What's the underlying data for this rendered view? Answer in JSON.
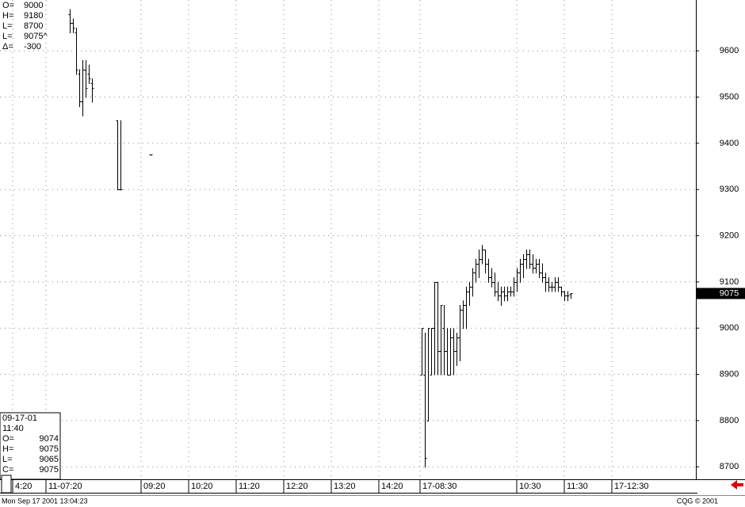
{
  "chart_data": {
    "type": "ohlc",
    "color": "#000000",
    "grid": true,
    "x": [
      88,
      92,
      96,
      100,
      104,
      108,
      112,
      116,
      148,
      152,
      190,
      532,
      536,
      540,
      544,
      548,
      552,
      556,
      560,
      564,
      568,
      572,
      576,
      580,
      584,
      588,
      592,
      596,
      600,
      604,
      608,
      612,
      616,
      620,
      624,
      628,
      632,
      636,
      640,
      644,
      648,
      652,
      656,
      660,
      664,
      668,
      672,
      676,
      680,
      684,
      688,
      692,
      696,
      700,
      704,
      708,
      712,
      716,
      720
    ],
    "open": [
      9680,
      9660,
      9640,
      9550,
      9490,
      9560,
      9550,
      9530,
      9450,
      9300,
      9375,
      8900,
      8900,
      8800,
      8900,
      9000,
      9100,
      8950,
      9000,
      8950,
      8900,
      8980,
      8950,
      8980,
      9040,
      9050,
      9080,
      9090,
      9120,
      9140,
      9150,
      9170,
      9140,
      9110,
      9100,
      9080,
      9070,
      9080,
      9070,
      9080,
      9080,
      9100,
      9120,
      9140,
      9150,
      9160,
      9140,
      9130,
      9140,
      9120,
      9110,
      9100,
      9090,
      9090,
      9100,
      9090,
      9080,
      9070,
      9074
    ],
    "high": [
      9690,
      9670,
      9650,
      9560,
      9580,
      9580,
      9570,
      9540,
      9450,
      9450,
      9375,
      9000,
      8990,
      9000,
      9000,
      9100,
      9100,
      9050,
      9050,
      9000,
      9000,
      9000,
      8990,
      9050,
      9060,
      9090,
      9100,
      9130,
      9150,
      9170,
      9180,
      9170,
      9150,
      9130,
      9120,
      9100,
      9090,
      9090,
      9090,
      9090,
      9110,
      9130,
      9150,
      9160,
      9170,
      9170,
      9160,
      9150,
      9150,
      9140,
      9120,
      9110,
      9100,
      9110,
      9110,
      9090,
      9080,
      9080,
      9075
    ],
    "low": [
      9640,
      9640,
      9550,
      9480,
      9460,
      9500,
      9530,
      9490,
      9300,
      9300,
      9375,
      8900,
      8700,
      8800,
      8900,
      8900,
      8900,
      8900,
      8900,
      8900,
      8900,
      8900,
      8920,
      8930,
      9000,
      9000,
      9050,
      9070,
      9100,
      9110,
      9140,
      9120,
      9100,
      9090,
      9070,
      9060,
      9050,
      9060,
      9060,
      9070,
      9070,
      9080,
      9100,
      9110,
      9130,
      9130,
      9120,
      9120,
      9110,
      9100,
      9080,
      9080,
      9080,
      9080,
      9080,
      9070,
      9060,
      9060,
      9065
    ],
    "close": [
      9660,
      9650,
      9560,
      9490,
      9560,
      9520,
      9540,
      9520,
      9300,
      9300,
      9375,
      9000,
      8720,
      9000,
      9000,
      9100,
      8950,
      9050,
      8950,
      8900,
      8980,
      8950,
      8980,
      9040,
      9050,
      9080,
      9090,
      9120,
      9140,
      9150,
      9170,
      9140,
      9110,
      9100,
      9080,
      9070,
      9080,
      9070,
      9080,
      9080,
      9100,
      9120,
      9140,
      9150,
      9160,
      9140,
      9130,
      9140,
      9120,
      9110,
      9100,
      9090,
      9090,
      9100,
      9090,
      9080,
      9070,
      9070,
      9075
    ],
    "xlim": [
      0,
      878
    ],
    "xticks": [
      {
        "value": 16,
        "label": "4:20"
      },
      {
        "value": 58,
        "label": "11-07:20"
      },
      {
        "value": 178,
        "label": "09:20"
      },
      {
        "value": 238,
        "label": "10:20"
      },
      {
        "value": 298,
        "label": "11:20"
      },
      {
        "value": 358,
        "label": "12:20"
      },
      {
        "value": 418,
        "label": "13:20"
      },
      {
        "value": 478,
        "label": "14:20"
      },
      {
        "value": 530,
        "label": "17-08:30"
      },
      {
        "value": 652,
        "label": "10:30"
      },
      {
        "value": 712,
        "label": "11:30"
      },
      {
        "value": 772,
        "label": "17-12:30"
      }
    ],
    "ylim": [
      8673,
      9710
    ],
    "yticks": [
      8700,
      8800,
      8900,
      9000,
      9100,
      9200,
      9300,
      9400,
      9500,
      9600
    ],
    "last_price": 9075,
    "summary": [
      {
        "label": "O=",
        "value": "9000"
      },
      {
        "label": "H=",
        "value": "9180"
      },
      {
        "label": "L=",
        "value": "8700"
      },
      {
        "label": "L=",
        "value": "9075^"
      },
      {
        "label": "Δ=",
        "value": "-300"
      }
    ],
    "cursor": {
      "date": "09-17-01",
      "time": "11:40",
      "fields": [
        {
          "label": "O=",
          "value": "9074"
        },
        {
          "label": "H=",
          "value": "9075"
        },
        {
          "label": "L=",
          "value": "9065"
        },
        {
          "label": "C=",
          "value": "9075"
        }
      ]
    },
    "timestamp": "Mon Sep 17 2001 13:04:23",
    "copyright": "CQG © 2001"
  }
}
